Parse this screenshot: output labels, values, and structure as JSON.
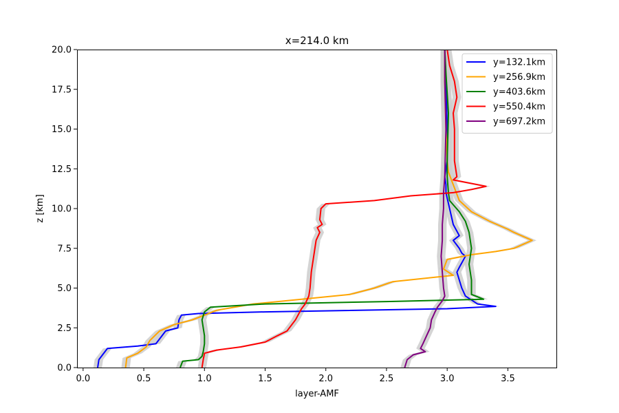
{
  "chart_data": {
    "type": "line",
    "title": "x=214.0 km",
    "xlabel": "layer-AMF",
    "ylabel": "z [km]",
    "xlim": [
      -0.05,
      3.9
    ],
    "ylim": [
      0,
      20
    ],
    "xticks": [
      0.0,
      0.5,
      1.0,
      1.5,
      2.0,
      2.5,
      3.0,
      3.5
    ],
    "xtick_labels": [
      "0.0",
      "0.5",
      "1.0",
      "1.5",
      "2.0",
      "2.5",
      "3.0",
      "3.5"
    ],
    "yticks": [
      0.0,
      2.5,
      5.0,
      7.5,
      10.0,
      12.5,
      15.0,
      17.5,
      20.0
    ],
    "ytick_labels": [
      "0.0",
      "2.5",
      "5.0",
      "7.5",
      "10.0",
      "12.5",
      "15.0",
      "17.5",
      "20.0"
    ],
    "grid": false,
    "legend_position": "top-right",
    "uncertainty_band_color": "#cccccc",
    "series": [
      {
        "name": "y=132.1km",
        "color": "#0000ff",
        "points": [
          [
            0.12,
            0
          ],
          [
            0.13,
            0.5
          ],
          [
            0.16,
            0.8
          ],
          [
            0.2,
            1.2
          ],
          [
            0.45,
            1.35
          ],
          [
            0.6,
            1.5
          ],
          [
            0.68,
            2.3
          ],
          [
            0.78,
            2.5
          ],
          [
            0.79,
            3.0
          ],
          [
            0.81,
            3.3
          ],
          [
            0.95,
            3.4
          ],
          [
            1.5,
            3.5
          ],
          [
            3.0,
            3.7
          ],
          [
            3.4,
            3.85
          ],
          [
            3.25,
            4.0
          ],
          [
            3.15,
            4.5
          ],
          [
            3.12,
            5.0
          ],
          [
            3.08,
            6.0
          ],
          [
            3.1,
            6.3
          ],
          [
            3.15,
            7.0
          ],
          [
            3.12,
            7.2
          ],
          [
            3.1,
            7.5
          ],
          [
            3.08,
            7.7
          ],
          [
            3.05,
            8.0
          ],
          [
            3.1,
            8.3
          ],
          [
            3.05,
            9.0
          ],
          [
            3.02,
            10.0
          ],
          [
            2.99,
            11.0
          ],
          [
            2.99,
            11.5
          ],
          [
            2.98,
            12.0
          ],
          [
            3.0,
            13.0
          ],
          [
            3.0,
            15.0
          ],
          [
            2.99,
            18.0
          ],
          [
            2.98,
            20.0
          ]
        ]
      },
      {
        "name": "y=256.9km",
        "color": "#ffa500",
        "points": [
          [
            0.35,
            0
          ],
          [
            0.36,
            0.6
          ],
          [
            0.45,
            0.9
          ],
          [
            0.52,
            1.3
          ],
          [
            0.55,
            1.7
          ],
          [
            0.63,
            2.3
          ],
          [
            0.75,
            2.7
          ],
          [
            0.9,
            3.0
          ],
          [
            1.0,
            3.3
          ],
          [
            1.1,
            3.6
          ],
          [
            1.4,
            4.0
          ],
          [
            1.8,
            4.3
          ],
          [
            2.2,
            4.6
          ],
          [
            2.4,
            5.0
          ],
          [
            2.55,
            5.4
          ],
          [
            2.8,
            5.6
          ],
          [
            3.05,
            5.8
          ],
          [
            2.97,
            6.2
          ],
          [
            3.0,
            6.8
          ],
          [
            3.2,
            7.1
          ],
          [
            3.4,
            7.3
          ],
          [
            3.55,
            7.5
          ],
          [
            3.7,
            8.0
          ],
          [
            3.55,
            8.5
          ],
          [
            3.5,
            8.7
          ],
          [
            3.35,
            9.2
          ],
          [
            3.2,
            9.8
          ],
          [
            3.1,
            10.5
          ],
          [
            3.05,
            11.5
          ],
          [
            3.01,
            12.3
          ],
          [
            3.0,
            13.0
          ],
          [
            2.99,
            15.0
          ],
          [
            2.98,
            18.0
          ],
          [
            2.98,
            20.0
          ]
        ]
      },
      {
        "name": "y=403.6km",
        "color": "#008000",
        "points": [
          [
            0.8,
            0
          ],
          [
            0.82,
            0.4
          ],
          [
            0.95,
            0.5
          ],
          [
            0.98,
            0.7
          ],
          [
            0.99,
            1.0
          ],
          [
            1.0,
            1.5
          ],
          [
            1.0,
            2.0
          ],
          [
            0.99,
            2.5
          ],
          [
            0.98,
            3.0
          ],
          [
            1.0,
            3.5
          ],
          [
            1.05,
            3.8
          ],
          [
            1.5,
            4.0
          ],
          [
            2.5,
            4.15
          ],
          [
            3.3,
            4.3
          ],
          [
            3.2,
            4.6
          ],
          [
            3.2,
            5.5
          ],
          [
            3.18,
            6.5
          ],
          [
            3.2,
            7.5
          ],
          [
            3.18,
            8.5
          ],
          [
            3.15,
            9.2
          ],
          [
            3.1,
            9.8
          ],
          [
            3.02,
            10.5
          ],
          [
            3.01,
            11.0
          ],
          [
            3.0,
            12.0
          ],
          [
            3.0,
            13.0
          ],
          [
            3.01,
            16.0
          ],
          [
            2.99,
            18.5
          ],
          [
            2.98,
            20.0
          ]
        ]
      },
      {
        "name": "y=550.4km",
        "color": "#ff0000",
        "points": [
          [
            0.98,
            0
          ],
          [
            0.99,
            0.5
          ],
          [
            1.0,
            0.9
          ],
          [
            1.1,
            1.1
          ],
          [
            1.3,
            1.3
          ],
          [
            1.5,
            1.6
          ],
          [
            1.6,
            2.0
          ],
          [
            1.68,
            2.3
          ],
          [
            1.72,
            2.7
          ],
          [
            1.75,
            3.0
          ],
          [
            1.8,
            3.7
          ],
          [
            1.83,
            4.0
          ],
          [
            1.86,
            4.5
          ],
          [
            1.87,
            5.0
          ],
          [
            1.88,
            6.0
          ],
          [
            1.9,
            7.0
          ],
          [
            1.92,
            8.0
          ],
          [
            1.95,
            8.5
          ],
          [
            1.93,
            8.8
          ],
          [
            1.97,
            9.0
          ],
          [
            1.95,
            9.3
          ],
          [
            1.96,
            10.0
          ],
          [
            2.0,
            10.3
          ],
          [
            2.4,
            10.5
          ],
          [
            2.7,
            10.8
          ],
          [
            3.05,
            11.0
          ],
          [
            3.2,
            11.2
          ],
          [
            3.32,
            11.4
          ],
          [
            3.05,
            11.8
          ],
          [
            3.08,
            12.0
          ],
          [
            3.06,
            13.0
          ],
          [
            3.06,
            15.0
          ],
          [
            3.05,
            16.0
          ],
          [
            3.08,
            17.0
          ],
          [
            3.06,
            18.0
          ],
          [
            3.02,
            19.0
          ],
          [
            3.0,
            20.0
          ]
        ]
      },
      {
        "name": "y=697.2km",
        "color": "#800080",
        "points": [
          [
            2.65,
            0
          ],
          [
            2.67,
            0.5
          ],
          [
            2.72,
            0.8
          ],
          [
            2.82,
            1.0
          ],
          [
            2.78,
            1.2
          ],
          [
            2.8,
            1.5
          ],
          [
            2.83,
            2.0
          ],
          [
            2.86,
            2.5
          ],
          [
            2.87,
            3.0
          ],
          [
            2.9,
            3.5
          ],
          [
            2.92,
            3.8
          ],
          [
            2.96,
            4.2
          ],
          [
            2.98,
            4.5
          ],
          [
            2.97,
            5.0
          ],
          [
            2.96,
            6.0
          ],
          [
            2.95,
            7.0
          ],
          [
            2.96,
            8.0
          ],
          [
            2.96,
            9.0
          ],
          [
            2.97,
            10.0
          ],
          [
            2.97,
            11.0
          ],
          [
            2.98,
            12.0
          ],
          [
            2.99,
            15.0
          ],
          [
            2.98,
            18.0
          ],
          [
            2.98,
            20.0
          ]
        ]
      }
    ]
  }
}
